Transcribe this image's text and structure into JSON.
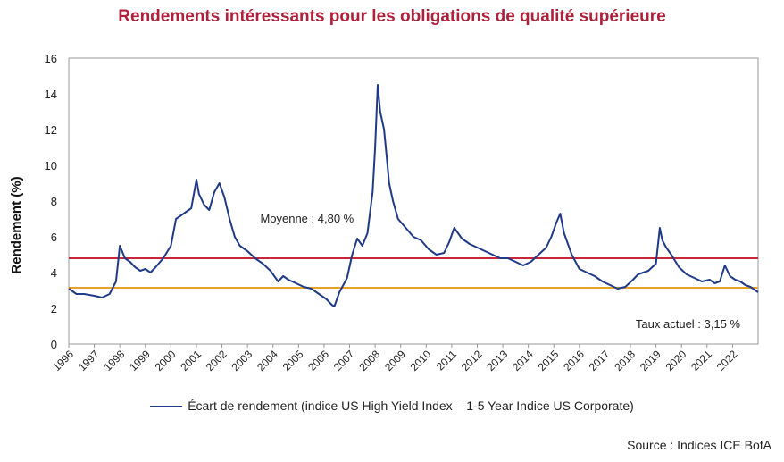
{
  "chart_data": {
    "type": "line",
    "title": "Rendements intéressants pour les obligations de qualité supérieure",
    "xlabel": "",
    "ylabel": "Rendement (%)",
    "ylim": [
      0,
      16
    ],
    "yticks": [
      "0",
      "2",
      "4",
      "6",
      "8",
      "10",
      "12",
      "14",
      "16"
    ],
    "xlim": [
      1996,
      2023
    ],
    "xticks": [
      "1996",
      "1997",
      "1998",
      "1999",
      "2000",
      "2001",
      "2002",
      "2003",
      "2004",
      "2005",
      "2006",
      "2007",
      "2008",
      "2009",
      "2010",
      "2011",
      "2012",
      "2013",
      "2014",
      "2015",
      "2016",
      "2017",
      "2018",
      "2019",
      "2020",
      "2021",
      "2022"
    ],
    "series": [
      {
        "name": "Écart de rendement (indice US High Yield Index – 1-5 Year Indice US Corporate)",
        "color": "#1f3a8a",
        "x": [
          1996.0,
          1996.3,
          1996.6,
          1997.0,
          1997.3,
          1997.6,
          1997.85,
          1998.0,
          1998.2,
          1998.4,
          1998.6,
          1998.8,
          1999.0,
          1999.2,
          1999.4,
          1999.7,
          2000.0,
          2000.2,
          2000.5,
          2000.8,
          2001.0,
          2001.1,
          2001.3,
          2001.5,
          2001.7,
          2001.9,
          2002.1,
          2002.3,
          2002.5,
          2002.7,
          2003.0,
          2003.3,
          2003.6,
          2003.9,
          2004.2,
          2004.4,
          2004.6,
          2004.9,
          2005.2,
          2005.5,
          2005.8,
          2006.1,
          2006.3,
          2006.4,
          2006.6,
          2006.9,
          2007.1,
          2007.3,
          2007.5,
          2007.7,
          2007.9,
          2008.0,
          2008.1,
          2008.2,
          2008.35,
          2008.45,
          2008.55,
          2008.7,
          2008.9,
          2009.2,
          2009.5,
          2009.8,
          2010.1,
          2010.4,
          2010.7,
          2010.9,
          2011.1,
          2011.4,
          2011.7,
          2012.0,
          2012.3,
          2012.6,
          2012.9,
          2013.2,
          2013.5,
          2013.8,
          2014.1,
          2014.4,
          2014.7,
          2014.9,
          2015.1,
          2015.25,
          2015.4,
          2015.7,
          2016.0,
          2016.3,
          2016.6,
          2016.9,
          2017.2,
          2017.5,
          2017.8,
          2018.1,
          2018.3,
          2018.5,
          2018.7,
          2019.0,
          2019.15,
          2019.25,
          2019.4,
          2019.6,
          2019.9,
          2020.2,
          2020.5,
          2020.8,
          2021.1,
          2021.3,
          2021.5,
          2021.7,
          2021.9,
          2022.1,
          2022.3,
          2022.5,
          2022.7,
          2022.9,
          2023.0
        ],
        "values": [
          3.1,
          2.8,
          2.8,
          2.7,
          2.6,
          2.8,
          3.5,
          5.5,
          4.8,
          4.6,
          4.3,
          4.1,
          4.2,
          4.0,
          4.3,
          4.8,
          5.5,
          7.0,
          7.3,
          7.6,
          9.2,
          8.4,
          7.8,
          7.5,
          8.5,
          9.0,
          8.2,
          7.0,
          6.0,
          5.5,
          5.2,
          4.8,
          4.5,
          4.1,
          3.5,
          3.8,
          3.6,
          3.4,
          3.2,
          3.1,
          2.8,
          2.5,
          2.2,
          2.1,
          2.9,
          3.7,
          5.0,
          5.9,
          5.5,
          6.2,
          8.5,
          11.0,
          14.5,
          13.0,
          12.0,
          10.5,
          9.0,
          8.0,
          7.0,
          6.5,
          6.0,
          5.8,
          5.3,
          5.0,
          5.1,
          5.7,
          6.5,
          5.9,
          5.6,
          5.4,
          5.2,
          5.0,
          4.8,
          4.8,
          4.6,
          4.4,
          4.6,
          5.0,
          5.4,
          6.0,
          6.8,
          7.3,
          6.2,
          5.0,
          4.2,
          4.0,
          3.8,
          3.5,
          3.3,
          3.1,
          3.2,
          3.6,
          3.9,
          4.0,
          4.1,
          4.5,
          6.5,
          5.8,
          5.4,
          5.0,
          4.3,
          3.9,
          3.7,
          3.5,
          3.6,
          3.4,
          3.5,
          4.4,
          3.8,
          3.6,
          3.5,
          3.3,
          3.2,
          3.0,
          2.9
        ]
      }
    ],
    "reference_lines": [
      {
        "label": "Moyenne : 4,80 %",
        "value": 4.8,
        "color": "#c8273a"
      },
      {
        "label": "Taux actuel : 3,15 %",
        "value": 3.15,
        "color": "#e8a22a"
      }
    ],
    "legend": "bottom-center",
    "grid": false
  },
  "source": "Source : Indices ICE BofA"
}
